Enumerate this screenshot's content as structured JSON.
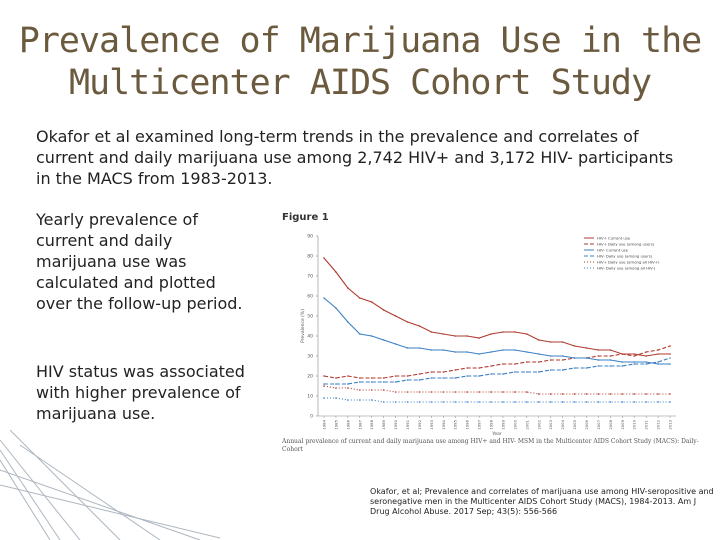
{
  "slide": {
    "title_line1": "Prevalence of Marijuana Use in the",
    "title_line2": "Multicenter AIDS Cohort Study",
    "intro": "Okafor et al examined long-term trends in the prevalence and correlates of current and daily marijuana use among 2,742 HIV+ and 3,172 HIV- participants in the MACS from 1983-2013.",
    "bullet1": "Yearly prevalence of current  and daily marijuana use was calculated and plotted over the follow-up period.",
    "bullet2": "HIV status was associated with higher prevalence of marijuana use.",
    "citation": "Okafor, et al; Prevalence and correlates of marijuana use among HIV-seropositive and seronegative men in the Multicenter AIDS Cohort Study (MACS), 1984-2013. Am J Drug Alcohol Abuse. 2017 Sep; 43(5): 556-566"
  },
  "colors": {
    "title": "#6b5a3e",
    "hiv_pos": "#b03a2e",
    "hiv_neg": "#3b7fc4"
  },
  "chart_data": {
    "type": "line",
    "figure_label": "Figure 1",
    "caption": "Annual prevalence of current and daily marijuana use among HIV+ and HIV- MSM in the Multicenter AIDS Cohort Study (MACS): Daily-Cohort",
    "ylabel": "Prevalence (%)",
    "xlabel": "Year",
    "ylim": [
      0,
      90
    ],
    "yticks": [
      0,
      10,
      20,
      30,
      40,
      50,
      60,
      70,
      80,
      90
    ],
    "x": [
      "1984",
      "1985",
      "1986",
      "1987",
      "1988",
      "1989",
      "1990",
      "1991",
      "1992",
      "1993",
      "1994",
      "1995",
      "1996",
      "1997",
      "1998",
      "1999",
      "2000",
      "2001",
      "2002",
      "2003",
      "2004",
      "2005",
      "2006",
      "2007",
      "2008",
      "2009",
      "2010",
      "2011",
      "2012",
      "2013"
    ],
    "series": [
      {
        "name": "HIV+ Current use",
        "color": "#b03a2e",
        "dash": "",
        "values": [
          79,
          72,
          64,
          59,
          57,
          53,
          50,
          47,
          45,
          42,
          41,
          40,
          40,
          39,
          41,
          42,
          42,
          41,
          38,
          37,
          37,
          35,
          34,
          33,
          33,
          31,
          31,
          30,
          31,
          31
        ]
      },
      {
        "name": "HIV+ Daily use (among users)",
        "color": "#b03a2e",
        "dash": "4,2",
        "values": [
          20,
          19,
          20,
          19,
          19,
          19,
          20,
          20,
          21,
          22,
          22,
          23,
          24,
          24,
          25,
          26,
          26,
          27,
          27,
          28,
          28,
          29,
          29,
          30,
          30,
          31,
          30,
          32,
          33,
          35
        ]
      },
      {
        "name": "HIV- Current use",
        "color": "#3b7fc4",
        "dash": "",
        "values": [
          59,
          54,
          47,
          41,
          40,
          38,
          36,
          34,
          34,
          33,
          33,
          32,
          32,
          31,
          32,
          33,
          33,
          32,
          31,
          30,
          30,
          29,
          29,
          28,
          28,
          27,
          27,
          27,
          26,
          26
        ]
      },
      {
        "name": "HIV- Daily use (among users)",
        "color": "#3b7fc4",
        "dash": "4,2",
        "values": [
          16,
          16,
          16,
          17,
          17,
          17,
          17,
          18,
          18,
          19,
          19,
          19,
          20,
          20,
          21,
          21,
          22,
          22,
          22,
          23,
          23,
          24,
          24,
          25,
          25,
          25,
          26,
          26,
          27,
          29
        ]
      },
      {
        "name": "HIV+ Daily use (among all HIV+)",
        "color": "#b03a2e",
        "dash": "1,2",
        "values": [
          15,
          14,
          14,
          13,
          13,
          13,
          12,
          12,
          12,
          12,
          12,
          12,
          12,
          12,
          12,
          12,
          12,
          12,
          11,
          11,
          11,
          11,
          11,
          11,
          11,
          11,
          11,
          11,
          11,
          11
        ]
      },
      {
        "name": "HIV- Daily use (among all HIV-)",
        "color": "#3b7fc4",
        "dash": "1,2",
        "values": [
          9,
          9,
          8,
          8,
          8,
          7,
          7,
          7,
          7,
          7,
          7,
          7,
          7,
          7,
          7,
          7,
          7,
          7,
          7,
          7,
          7,
          7,
          7,
          7,
          7,
          7,
          7,
          7,
          7,
          7
        ]
      }
    ]
  }
}
